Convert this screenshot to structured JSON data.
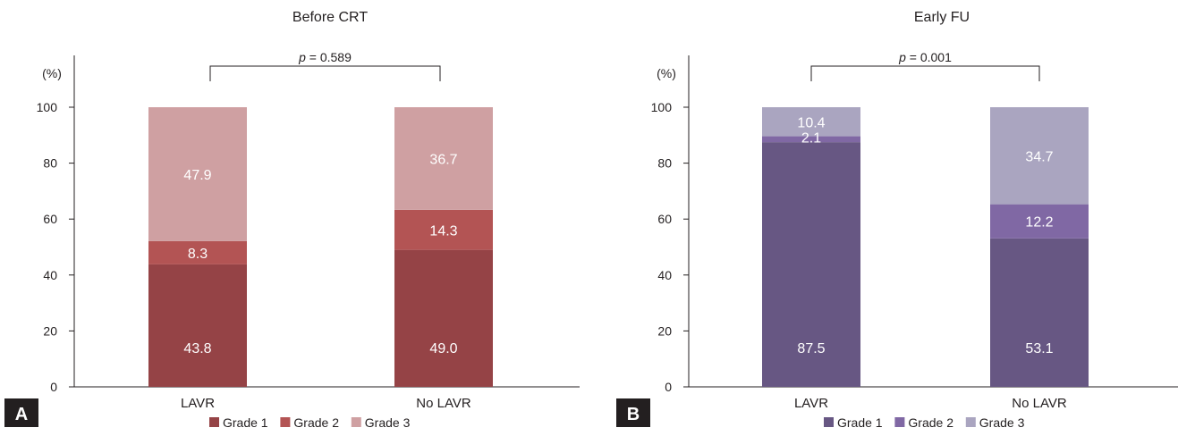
{
  "chart_data": [
    {
      "type": "bar",
      "panel": "A",
      "title": "Before CRT",
      "unit": "(%)",
      "ylim": [
        0,
        100
      ],
      "yticks": [
        0,
        20,
        40,
        60,
        80,
        100
      ],
      "categories": [
        "LAVR",
        "No LAVR"
      ],
      "series": [
        {
          "name": "Grade 1",
          "values": [
            43.8,
            49.0
          ],
          "labels": [
            "43.8",
            "49.0"
          ],
          "color": "#954346"
        },
        {
          "name": "Grade 2",
          "values": [
            8.3,
            14.3
          ],
          "labels": [
            "8.3",
            "14.3"
          ],
          "color": "#b35454"
        },
        {
          "name": "Grade 3",
          "values": [
            47.9,
            36.7
          ],
          "labels": [
            "47.9",
            "36.7"
          ],
          "color": "#cfa0a2"
        }
      ],
      "annotation": {
        "p_symbol": "p",
        "p_value": " = 0.589"
      },
      "stacked": true,
      "grid": false,
      "legend_position": "bottom"
    },
    {
      "type": "bar",
      "panel": "B",
      "title": "Early FU",
      "unit": "(%)",
      "ylim": [
        0,
        100
      ],
      "yticks": [
        0,
        20,
        40,
        60,
        80,
        100
      ],
      "categories": [
        "LAVR",
        "No LAVR"
      ],
      "series": [
        {
          "name": "Grade 1",
          "values": [
            87.5,
            53.1
          ],
          "labels": [
            "87.5",
            "53.1"
          ],
          "color": "#675783"
        },
        {
          "name": "Grade 2",
          "values": [
            2.1,
            12.2
          ],
          "labels": [
            "2.1",
            "12.2"
          ],
          "color": "#8068a4"
        },
        {
          "name": "Grade 3",
          "values": [
            10.4,
            34.7
          ],
          "labels": [
            "10.4",
            "34.7"
          ],
          "color": "#aaa5c0"
        }
      ],
      "annotation": {
        "p_symbol": "p",
        "p_value": " = 0.001"
      },
      "stacked": true,
      "grid": false,
      "legend_position": "bottom"
    }
  ],
  "colors": {
    "panel_badge": "#231f20",
    "axis": "#231f20",
    "segment_text": "#ffffff"
  }
}
